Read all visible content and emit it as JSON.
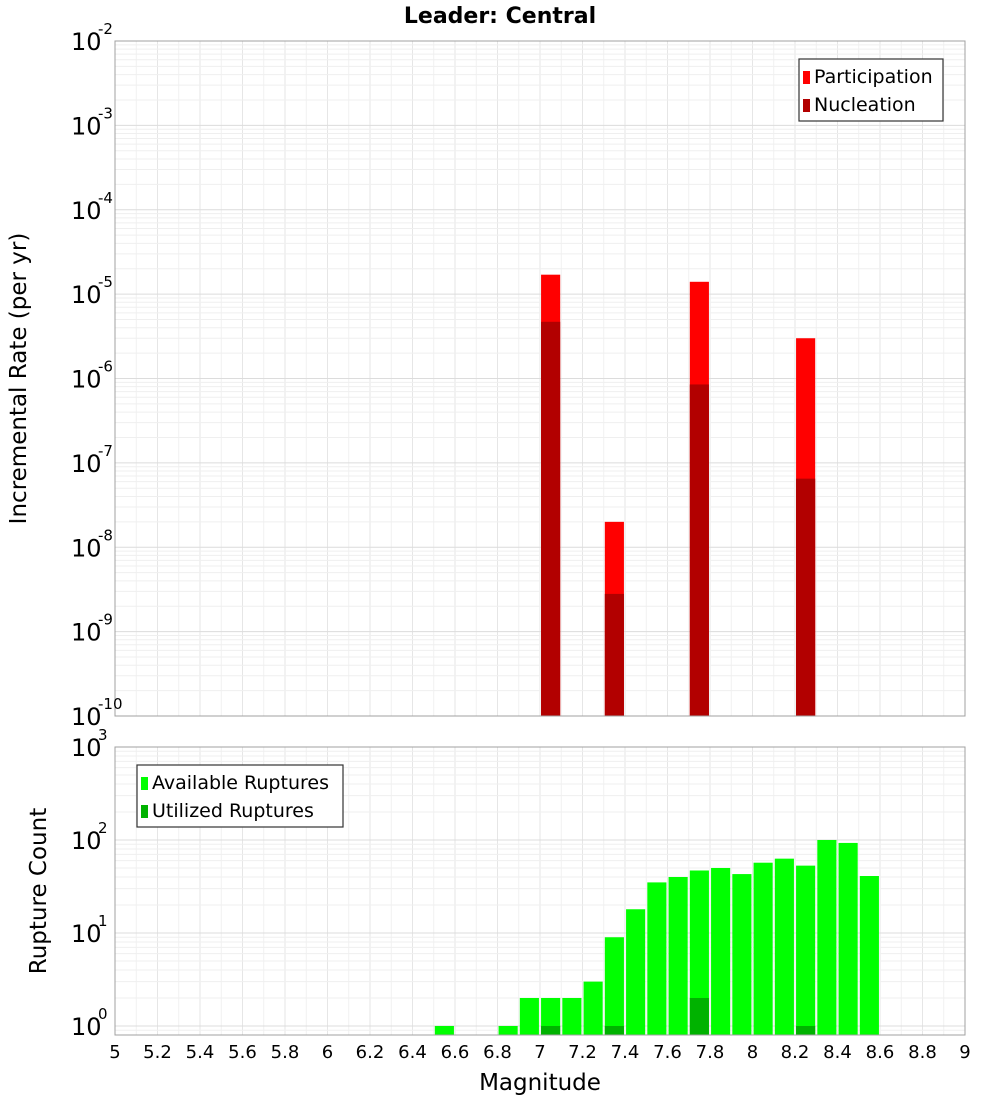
{
  "chart_data": [
    {
      "type": "bar",
      "title": "Leader: Central",
      "ylabel": "Incremental Rate (per yr)",
      "xlabel": "",
      "x_ticks": [
        "5",
        "5.2",
        "5.4",
        "5.6",
        "5.8",
        "6",
        "6.2",
        "6.4",
        "6.6",
        "6.8",
        "7",
        "7.2",
        "7.4",
        "7.6",
        "7.8",
        "8",
        "8.2",
        "8.4",
        "8.6",
        "8.8",
        "9"
      ],
      "xlim": [
        5,
        9
      ],
      "y_scale": "log",
      "ylim": [
        1e-10,
        0.01
      ],
      "y_ticks": [
        {
          "base": "10",
          "exp": "-2",
          "value": 0.01
        },
        {
          "base": "10",
          "exp": "-3",
          "value": 0.001
        },
        {
          "base": "10",
          "exp": "-4",
          "value": 0.0001
        },
        {
          "base": "10",
          "exp": "-5",
          "value": 1e-05
        },
        {
          "base": "10",
          "exp": "-6",
          "value": 1e-06
        },
        {
          "base": "10",
          "exp": "-7",
          "value": 1e-07
        },
        {
          "base": "10",
          "exp": "-8",
          "value": 1e-08
        },
        {
          "base": "10",
          "exp": "-9",
          "value": 1e-09
        },
        {
          "base": "10",
          "exp": "-10",
          "value": 1e-10
        }
      ],
      "grid": true,
      "legend_position": "top-right",
      "series": [
        {
          "name": "Participation",
          "color": "#ff0000",
          "x": [
            7.05,
            7.35,
            7.75,
            8.25
          ],
          "values": [
            1.7e-05,
            2e-08,
            1.4e-05,
            3e-06
          ]
        },
        {
          "name": "Nucleation",
          "color": "#b20000",
          "x": [
            7.05,
            7.35,
            7.75,
            8.25
          ],
          "values": [
            4.7e-06,
            2.8e-09,
            8.5e-07,
            6.5e-08
          ]
        }
      ]
    },
    {
      "type": "bar",
      "title": "",
      "ylabel": "Rupture Count",
      "xlabel": "Magnitude",
      "x_ticks": [
        "5",
        "5.2",
        "5.4",
        "5.6",
        "5.8",
        "6",
        "6.2",
        "6.4",
        "6.6",
        "6.8",
        "7",
        "7.2",
        "7.4",
        "7.6",
        "7.8",
        "8",
        "8.2",
        "8.4",
        "8.6",
        "8.8",
        "9"
      ],
      "xlim": [
        5,
        9
      ],
      "y_scale": "log",
      "ylim": [
        0.8,
        1000
      ],
      "y_ticks": [
        {
          "base": "10",
          "exp": "3",
          "value": 1000
        },
        {
          "base": "10",
          "exp": "2",
          "value": 100
        },
        {
          "base": "10",
          "exp": "1",
          "value": 10
        },
        {
          "base": "10",
          "exp": "0",
          "value": 1
        }
      ],
      "grid": true,
      "legend_position": "top-left",
      "series": [
        {
          "name": "Available Ruptures",
          "color": "#00ff00",
          "x": [
            6.55,
            6.85,
            6.95,
            7.05,
            7.15,
            7.25,
            7.35,
            7.45,
            7.55,
            7.65,
            7.75,
            7.85,
            7.95,
            8.05,
            8.15,
            8.25,
            8.35,
            8.45,
            8.55
          ],
          "values": [
            1,
            1,
            2,
            2,
            2,
            3,
            9,
            18,
            35,
            40,
            47,
            50,
            43,
            57,
            63,
            53,
            100,
            93,
            41
          ]
        },
        {
          "name": "Utilized Ruptures",
          "color": "#00b200",
          "x": [
            7.05,
            7.35,
            7.75,
            8.25
          ],
          "values": [
            1,
            1,
            2,
            1
          ]
        }
      ]
    }
  ]
}
